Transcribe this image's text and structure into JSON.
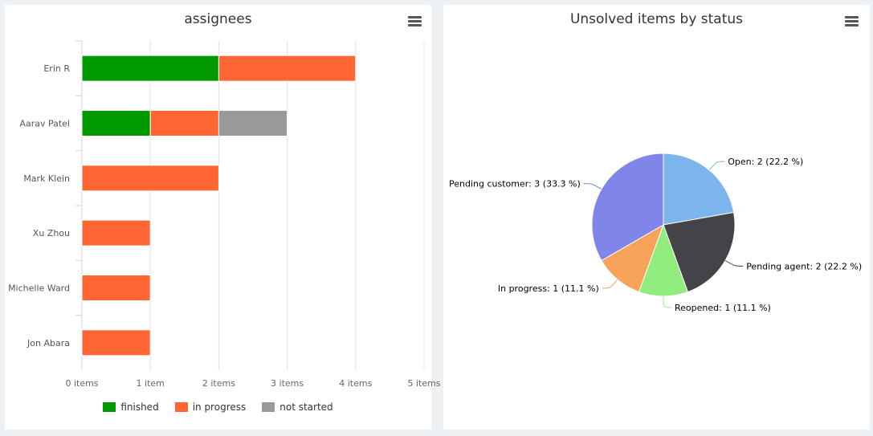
{
  "chart_data": [
    {
      "type": "bar",
      "orientation": "horizontal",
      "stacked": true,
      "title": "assignees",
      "categories": [
        "Erin R",
        "Aarav Patel",
        "Mark Klein",
        "Xu Zhou",
        "Michelle Ward",
        "Jon Abara"
      ],
      "series": [
        {
          "name": "finished",
          "color": "#009900",
          "values": [
            2,
            1,
            0,
            0,
            0,
            0
          ]
        },
        {
          "name": "in progress",
          "color": "#ff6633",
          "values": [
            2,
            1,
            2,
            1,
            1,
            1
          ]
        },
        {
          "name": "not started",
          "color": "#999999",
          "values": [
            0,
            1,
            0,
            0,
            0,
            0
          ]
        }
      ],
      "xlim": [
        0,
        5
      ],
      "xticks": [
        "0 items",
        "1 item",
        "2 items",
        "3 items",
        "4 items",
        "5 items"
      ],
      "grid": true,
      "legend": "bottom"
    },
    {
      "type": "pie",
      "title": "Unsolved items by status",
      "slices": [
        {
          "name": "Open",
          "value": 2,
          "label": "Open: 2 (22.2 %)",
          "color": "#7cb5ec"
        },
        {
          "name": "Pending agent",
          "value": 2,
          "label": "Pending agent: 2 (22.2 %)",
          "color": "#434348"
        },
        {
          "name": "Reopened",
          "value": 1,
          "label": "Reopened: 1 (11.1 %)",
          "color": "#90ed7d"
        },
        {
          "name": "In progress",
          "value": 1,
          "label": "In progress: 1 (11.1 %)",
          "color": "#f7a35c"
        },
        {
          "name": "Pending customer",
          "value": 3,
          "label": "Pending customer: 3 (33.3 %)",
          "color": "#8085e9"
        }
      ]
    }
  ]
}
